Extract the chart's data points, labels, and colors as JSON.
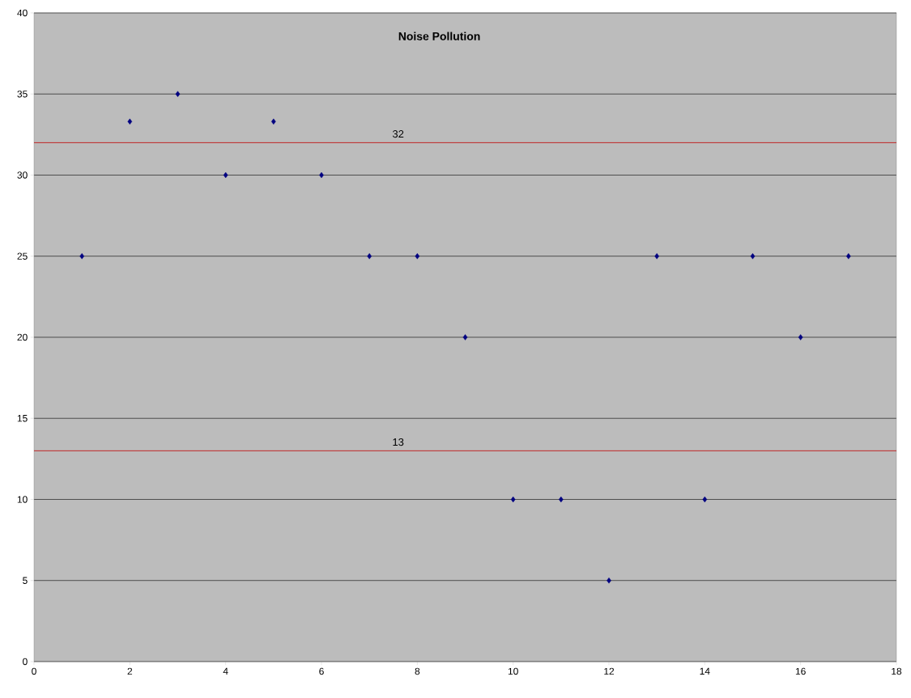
{
  "chart_data": {
    "type": "scatter",
    "title": "Noise Pollution",
    "x": [
      1,
      2,
      3,
      4,
      5,
      6,
      7,
      8,
      9,
      10,
      11,
      12,
      13,
      14,
      15,
      16,
      17
    ],
    "series": [
      {
        "color": "#000080",
        "values": [
          25,
          33.3,
          35,
          30,
          33.3,
          30,
          25,
          25,
          20,
          10,
          10,
          5,
          25,
          10,
          25,
          20,
          25
        ]
      }
    ],
    "marker": "diamond",
    "grid": "y",
    "xlim": [
      0,
      18
    ],
    "xticks": [
      0,
      2,
      4,
      6,
      8,
      10,
      12,
      14,
      16,
      18
    ],
    "ylim": [
      0,
      40
    ],
    "yticks": [
      0,
      5,
      10,
      15,
      20,
      25,
      30,
      35,
      40
    ],
    "ref_lines": [
      {
        "axis": "y",
        "value": 32,
        "label": "32",
        "color": "#c00000"
      },
      {
        "axis": "y",
        "value": 13,
        "label": "13",
        "color": "#c00000"
      }
    ]
  }
}
